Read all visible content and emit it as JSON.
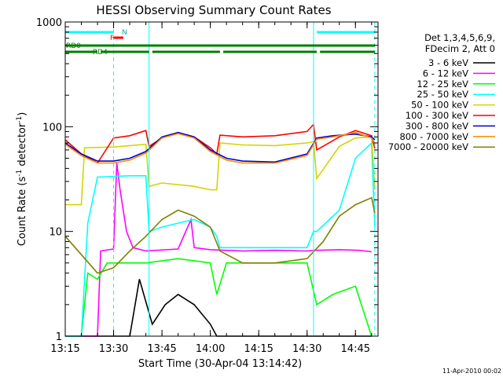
{
  "chart_data": {
    "type": "line",
    "title": "HESSI Observing Summary Count Rates",
    "xlabel": "Start Time (30-Apr-04 13:14:42)",
    "ylabel": "Count Rate (s",
    "ylabel_sup1": "-1",
    "ylabel_mid": " detector",
    "ylabel_sup2": "-1",
    "ylabel_end": ")",
    "y_scale": "log",
    "ylim": [
      1,
      1000
    ],
    "xlim": [
      "13:15",
      "14:52"
    ],
    "x_tick_labels": [
      "13:15",
      "13:30",
      "13:45",
      "14:00",
      "14:15",
      "14:30",
      "14:45"
    ],
    "y_tick_labels": [
      "1",
      "10",
      "100",
      "1000"
    ],
    "legend_header": [
      "Det 1,3,4,5,6,9,",
      "FDecim 2, Att 0"
    ],
    "legend_position": "right",
    "grid": false,
    "footer_stamp": "11-Apr-2010 00:02",
    "flag_labels": {
      "n": "N",
      "f": "F",
      "rd0": "RD0",
      "rd4": "RD4"
    },
    "flag_bars": [
      {
        "flag": "N",
        "color": "#00ffff",
        "segments": [
          [
            "13:15",
            "13:30"
          ],
          [
            "14:33",
            "14:51"
          ]
        ]
      },
      {
        "flag": "F",
        "color": "#ff0000",
        "segments": [
          [
            "13:30",
            "13:33"
          ]
        ]
      },
      {
        "flag": "RD0",
        "color": "#008000",
        "segments": [
          [
            "13:15",
            "14:51"
          ]
        ]
      },
      {
        "flag": "RD4",
        "color": "#008000",
        "segments": [
          [
            "13:15",
            "13:25"
          ],
          [
            "13:26",
            "13:41"
          ],
          [
            "13:42",
            "14:03"
          ],
          [
            "14:04",
            "14:33"
          ],
          [
            "14:34",
            "14:51"
          ]
        ]
      }
    ],
    "vertical_markers": [
      {
        "x": "13:30",
        "color": "#00ffff",
        "style": "dashed"
      },
      {
        "x": "13:41",
        "color": "#00ffff",
        "style": "solid"
      },
      {
        "x": "14:32",
        "color": "#00ffff",
        "style": "solid"
      },
      {
        "x": "14:51",
        "color": "#00ffff",
        "style": "dashed"
      }
    ],
    "series": [
      {
        "name": "3 - 6 keV",
        "color": "#000000",
        "x": [
          "13:15",
          "13:30",
          "13:35",
          "13:38",
          "13:42",
          "13:46",
          "13:50",
          "13:55",
          "14:00",
          "14:02",
          "14:05",
          "14:30",
          "14:35",
          "14:40",
          "14:45",
          "14:50"
        ],
        "values": [
          1,
          1,
          1,
          3.5,
          1.3,
          2,
          2.5,
          2,
          1.3,
          1,
          1,
          1,
          1,
          1,
          1,
          1
        ]
      },
      {
        "name": "6 - 12 keV",
        "color": "#ff00ff",
        "x": [
          "13:15",
          "13:20",
          "13:25",
          "13:26",
          "13:30",
          "13:31",
          "13:32",
          "13:34",
          "13:36",
          "13:40",
          "13:50",
          "13:54",
          "13:55",
          "14:00",
          "14:10",
          "14:20",
          "14:30",
          "14:33",
          "14:40",
          "14:46",
          "14:50"
        ],
        "values": [
          1,
          1,
          1,
          6.5,
          6.8,
          45,
          25,
          10,
          7,
          6.5,
          6.8,
          13,
          7,
          6.7,
          6.5,
          6.6,
          6.5,
          6.6,
          6.7,
          6.6,
          6.4
        ]
      },
      {
        "name": "12 - 25 keV",
        "color": "#00ff00",
        "x": [
          "13:15",
          "13:20",
          "13:22",
          "13:25",
          "13:28",
          "13:35",
          "13:40",
          "13:50",
          "14:00",
          "14:02",
          "14:05",
          "14:20",
          "14:30",
          "14:33",
          "14:38",
          "14:45",
          "14:50"
        ],
        "values": [
          1,
          1,
          4,
          3.5,
          5,
          5,
          5,
          5.5,
          5,
          2.5,
          5,
          5,
          5,
          2,
          2.5,
          3,
          1
        ]
      },
      {
        "name": "25 - 50 keV",
        "color": "#00ffff",
        "x": [
          "13:15",
          "13:20",
          "13:22",
          "13:25",
          "13:35",
          "13:40",
          "13:41",
          "13:45",
          "13:50",
          "13:55",
          "14:00",
          "14:02",
          "14:03",
          "14:10",
          "14:20",
          "14:30",
          "14:32",
          "14:33",
          "14:40",
          "14:45",
          "14:50",
          "14:51"
        ],
        "values": [
          1,
          1,
          12,
          33,
          34,
          34,
          10,
          11,
          12,
          13,
          11,
          9,
          7,
          7,
          7,
          7,
          10,
          10,
          16,
          50,
          70,
          11
        ]
      },
      {
        "name": "50 - 100 keV",
        "color": "#d4d400",
        "x": [
          "13:15",
          "13:20",
          "13:21",
          "13:30",
          "13:40",
          "13:41",
          "13:45",
          "13:55",
          "14:00",
          "14:02",
          "14:03",
          "14:10",
          "14:20",
          "14:30",
          "14:32",
          "14:33",
          "14:40",
          "14:45",
          "14:50",
          "14:51"
        ],
        "values": [
          18,
          18,
          63,
          64,
          68,
          27,
          29,
          27,
          25,
          25,
          70,
          67,
          66,
          70,
          72,
          32,
          65,
          78,
          80,
          25
        ]
      },
      {
        "name": "100 - 300 keV",
        "color": "#ff0000",
        "x": [
          "13:15",
          "13:20",
          "13:25",
          "13:30",
          "13:35",
          "13:40",
          "13:41",
          "13:45",
          "13:50",
          "13:55",
          "14:00",
          "14:02",
          "14:03",
          "14:10",
          "14:20",
          "14:30",
          "14:32",
          "14:33",
          "14:40",
          "14:45",
          "14:50",
          "14:51"
        ],
        "values": [
          75,
          55,
          45,
          78,
          82,
          92,
          65,
          78,
          88,
          80,
          63,
          55,
          83,
          80,
          82,
          90,
          105,
          60,
          80,
          92,
          82,
          62
        ]
      },
      {
        "name": "300 - 800 keV",
        "color": "#0000cd",
        "x": [
          "13:15",
          "13:20",
          "13:25",
          "13:30",
          "13:35",
          "13:40",
          "13:45",
          "13:50",
          "13:55",
          "14:00",
          "14:05",
          "14:10",
          "14:20",
          "14:30",
          "14:33",
          "14:38",
          "14:45",
          "14:50",
          "14:51"
        ],
        "values": [
          70,
          55,
          47,
          47,
          50,
          58,
          80,
          88,
          80,
          60,
          50,
          47,
          46,
          55,
          78,
          82,
          85,
          80,
          75
        ]
      },
      {
        "name": "800 - 7000 keV",
        "color": "#ff8c00",
        "x": [
          "13:15",
          "13:20",
          "13:25",
          "13:30",
          "13:35",
          "13:40",
          "13:45",
          "13:50",
          "13:55",
          "14:00",
          "14:05",
          "14:10",
          "14:20",
          "14:30",
          "14:33",
          "14:38",
          "14:45",
          "14:50",
          "14:51"
        ],
        "values": [
          68,
          53,
          45,
          45,
          48,
          56,
          78,
          86,
          78,
          58,
          48,
          45,
          45,
          53,
          76,
          80,
          88,
          78,
          70
        ]
      },
      {
        "name": "7000 - 20000 keV",
        "color": "#808000",
        "x": [
          "13:15",
          "13:20",
          "13:25",
          "13:30",
          "13:35",
          "13:40",
          "13:45",
          "13:50",
          "13:55",
          "14:00",
          "14:03",
          "14:10",
          "14:20",
          "14:30",
          "14:35",
          "14:40",
          "14:45",
          "14:50",
          "14:51"
        ],
        "values": [
          9,
          6,
          4,
          4.5,
          6.5,
          9,
          13,
          16,
          14,
          11,
          6.5,
          5,
          5,
          5.5,
          8,
          14,
          18,
          21,
          15
        ]
      }
    ]
  }
}
